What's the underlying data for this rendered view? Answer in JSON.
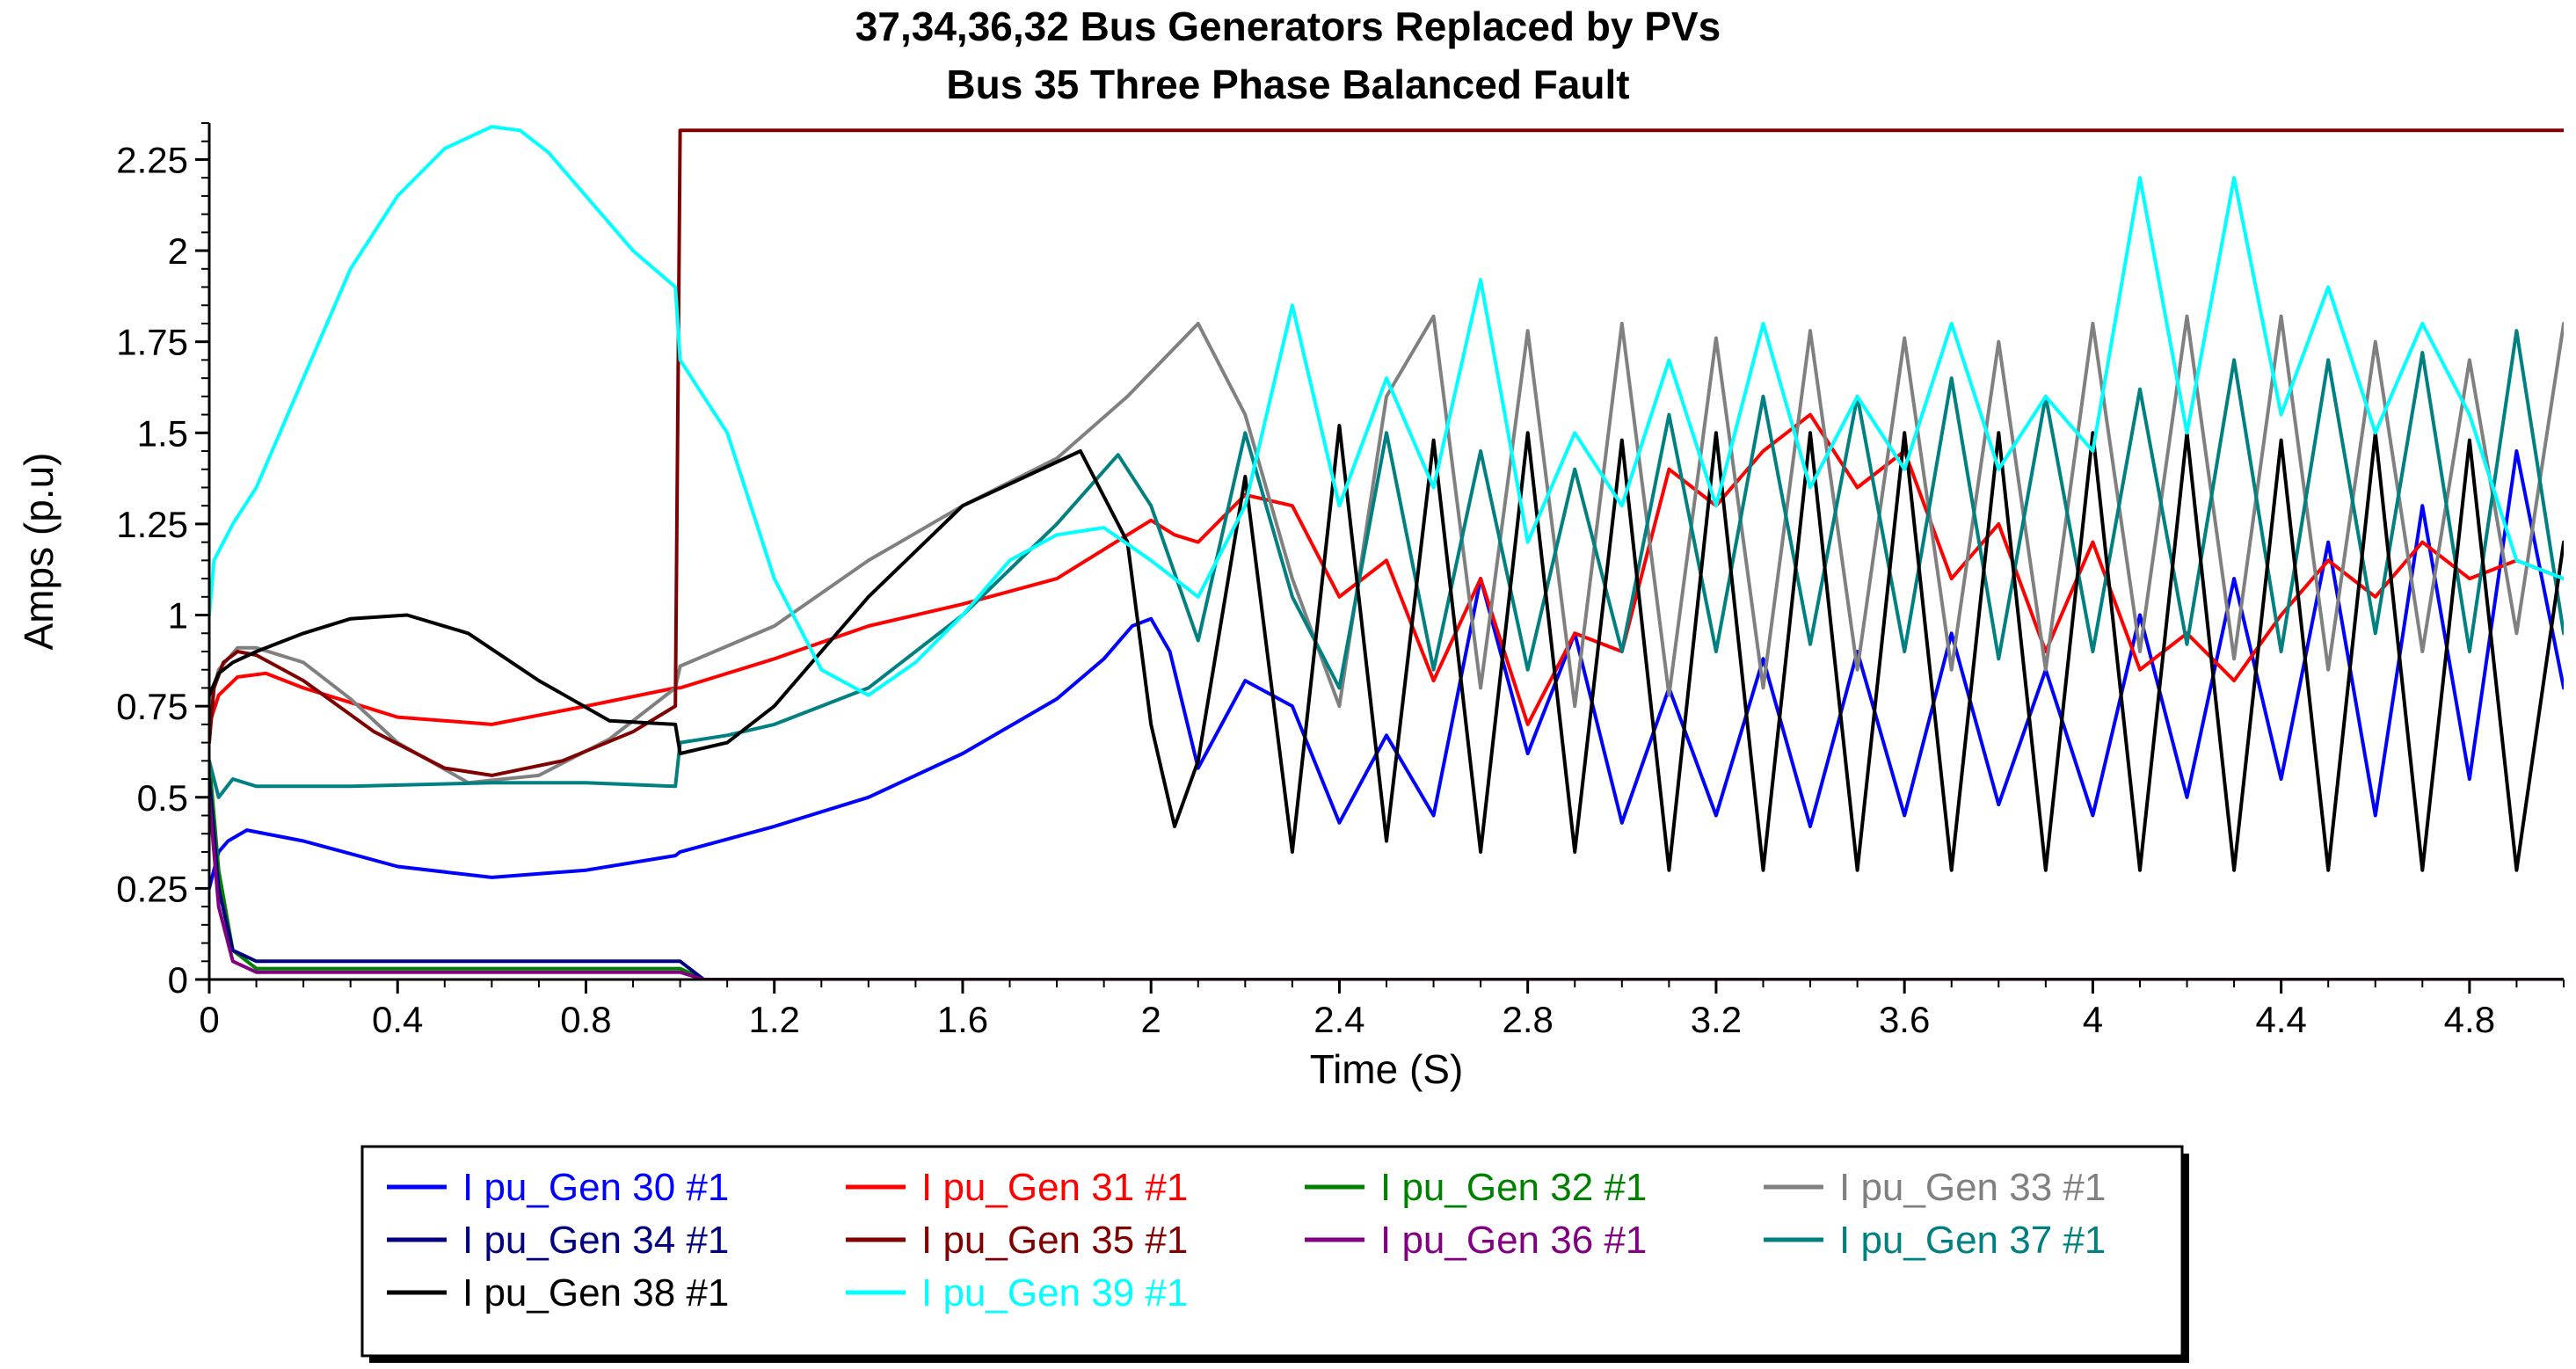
{
  "chart_data": {
    "type": "line",
    "title": "37,34,36,32  Bus Generators Replaced by PVs",
    "subtitle": "Bus 35 Three Phase Balanced Fault",
    "xlabel": "Time (S)",
    "ylabel": "Amps (p.u)",
    "xlim": [
      0,
      5
    ],
    "ylim": [
      0,
      2.35
    ],
    "x_ticks": [
      "0",
      "0.4",
      "0.8",
      "1.2",
      "1.6",
      "2",
      "2.4",
      "2.8",
      "3.2",
      "3.6",
      "4",
      "4.4",
      "4.8"
    ],
    "x_tick_values": [
      0,
      0.4,
      0.8,
      1.2,
      1.6,
      2.0,
      2.4,
      2.8,
      3.2,
      3.6,
      4.0,
      4.4,
      4.8
    ],
    "y_ticks": [
      "0",
      "0.25",
      "0.5",
      "0.75",
      "1",
      "1.25",
      "1.5",
      "1.75",
      "2",
      "2.25"
    ],
    "y_tick_values": [
      0,
      0.25,
      0.5,
      0.75,
      1.0,
      1.25,
      1.5,
      1.75,
      2.0,
      2.25
    ],
    "legend_position": "bottom",
    "fault_time": 1.0,
    "series": [
      {
        "name": "I pu_Gen 30 #1",
        "color": "#0000ff",
        "x": [
          0,
          0.02,
          0.04,
          0.08,
          0.2,
          0.4,
          0.6,
          0.8,
          0.99,
          1.0,
          1.2,
          1.4,
          1.6,
          1.8,
          1.9,
          1.96,
          2.0,
          2.04,
          2.1,
          2.2,
          2.3,
          2.4,
          2.5,
          2.6,
          2.7,
          2.8,
          2.9,
          3.0,
          3.1,
          3.2,
          3.3,
          3.4,
          3.5,
          3.6,
          3.7,
          3.8,
          3.9,
          4.0,
          4.1,
          4.2,
          4.3,
          4.4,
          4.5,
          4.6,
          4.7,
          4.8,
          4.9,
          5.0
        ],
        "y": [
          0.25,
          0.35,
          0.38,
          0.41,
          0.38,
          0.31,
          0.28,
          0.3,
          0.34,
          0.35,
          0.42,
          0.5,
          0.62,
          0.77,
          0.88,
          0.97,
          0.99,
          0.9,
          0.58,
          0.82,
          0.75,
          0.43,
          0.67,
          0.45,
          1.1,
          0.62,
          0.95,
          0.43,
          0.8,
          0.45,
          0.88,
          0.42,
          0.9,
          0.45,
          0.95,
          0.48,
          0.85,
          0.45,
          1.0,
          0.5,
          1.1,
          0.55,
          1.2,
          0.45,
          1.3,
          0.55,
          1.45,
          0.8
        ]
      },
      {
        "name": "I pu_Gen 31 #1",
        "color": "#ff0000",
        "x": [
          0,
          0.02,
          0.06,
          0.12,
          0.2,
          0.4,
          0.6,
          0.8,
          0.99,
          1.0,
          1.2,
          1.4,
          1.6,
          1.8,
          1.9,
          2.0,
          2.05,
          2.1,
          2.2,
          2.3,
          2.4,
          2.5,
          2.6,
          2.7,
          2.8,
          2.9,
          3.0,
          3.1,
          3.2,
          3.3,
          3.4,
          3.5,
          3.6,
          3.7,
          3.8,
          3.9,
          4.0,
          4.1,
          4.2,
          4.3,
          4.4,
          4.5,
          4.6,
          4.7,
          4.8,
          4.9,
          5.0
        ],
        "y": [
          0.7,
          0.78,
          0.83,
          0.84,
          0.8,
          0.72,
          0.7,
          0.75,
          0.8,
          0.8,
          0.88,
          0.97,
          1.03,
          1.1,
          1.18,
          1.26,
          1.22,
          1.2,
          1.33,
          1.3,
          1.05,
          1.15,
          0.82,
          1.1,
          0.7,
          0.95,
          0.9,
          1.4,
          1.3,
          1.45,
          1.55,
          1.35,
          1.45,
          1.1,
          1.25,
          0.9,
          1.2,
          0.85,
          0.95,
          0.82,
          1.0,
          1.15,
          1.05,
          1.2,
          1.1,
          1.15,
          1.1
        ]
      },
      {
        "name": "I pu_Gen 32 #1",
        "color": "#008000",
        "x": [
          0,
          0.02,
          0.05,
          0.1,
          0.99,
          1.0,
          1.05,
          5.0
        ],
        "y": [
          0.6,
          0.3,
          0.08,
          0.03,
          0.03,
          0.03,
          0.0,
          0.0
        ]
      },
      {
        "name": "I pu_Gen 33 #1",
        "color": "#808080",
        "x": [
          0,
          0.02,
          0.06,
          0.1,
          0.2,
          0.3,
          0.4,
          0.55,
          0.7,
          0.85,
          0.99,
          1.0,
          1.2,
          1.4,
          1.6,
          1.8,
          1.95,
          2.1,
          2.2,
          2.3,
          2.4,
          2.5,
          2.6,
          2.7,
          2.8,
          2.9,
          3.0,
          3.1,
          3.2,
          3.3,
          3.4,
          3.5,
          3.6,
          3.7,
          3.8,
          3.9,
          4.0,
          4.1,
          4.2,
          4.3,
          4.4,
          4.5,
          4.6,
          4.7,
          4.8,
          4.9,
          5.0
        ],
        "y": [
          0.75,
          0.85,
          0.91,
          0.91,
          0.87,
          0.77,
          0.65,
          0.54,
          0.56,
          0.66,
          0.8,
          0.86,
          0.97,
          1.15,
          1.3,
          1.43,
          1.6,
          1.8,
          1.55,
          1.1,
          0.75,
          1.6,
          1.82,
          0.8,
          1.78,
          0.75,
          1.8,
          0.78,
          1.76,
          0.8,
          1.78,
          0.85,
          1.76,
          0.85,
          1.75,
          0.85,
          1.8,
          0.9,
          1.82,
          0.88,
          1.82,
          0.85,
          1.75,
          0.9,
          1.7,
          0.95,
          1.8
        ]
      },
      {
        "name": "I pu_Gen 34 #1",
        "color": "#000080",
        "x": [
          0,
          0.02,
          0.05,
          0.1,
          0.99,
          1.0,
          1.05,
          5.0
        ],
        "y": [
          0.55,
          0.25,
          0.08,
          0.05,
          0.05,
          0.05,
          0.0,
          0.0
        ]
      },
      {
        "name": "I pu_Gen 35 #1",
        "color": "#800000",
        "x": [
          0,
          0.01,
          0.03,
          0.06,
          0.1,
          0.2,
          0.35,
          0.5,
          0.6,
          0.75,
          0.9,
          0.99,
          1.0,
          5.0
        ],
        "y": [
          0.65,
          0.8,
          0.87,
          0.9,
          0.89,
          0.82,
          0.68,
          0.58,
          0.56,
          0.6,
          0.68,
          0.75,
          2.33,
          2.33
        ]
      },
      {
        "name": "I pu_Gen 36 #1",
        "color": "#800080",
        "x": [
          0,
          0.02,
          0.05,
          0.1,
          0.99,
          1.0,
          1.05,
          5.0
        ],
        "y": [
          0.5,
          0.2,
          0.05,
          0.02,
          0.02,
          0.02,
          0.0,
          0.0
        ]
      },
      {
        "name": "I pu_Gen 37 #1",
        "color": "#008080",
        "x": [
          0,
          0.02,
          0.05,
          0.1,
          0.3,
          0.6,
          0.8,
          0.99,
          1.0,
          1.1,
          1.2,
          1.4,
          1.6,
          1.8,
          1.93,
          2.0,
          2.1,
          2.2,
          2.3,
          2.4,
          2.5,
          2.6,
          2.7,
          2.8,
          2.9,
          3.0,
          3.1,
          3.2,
          3.3,
          3.4,
          3.5,
          3.6,
          3.7,
          3.8,
          3.9,
          4.0,
          4.1,
          4.2,
          4.3,
          4.4,
          4.5,
          4.6,
          4.7,
          4.8,
          4.9,
          5.0
        ],
        "y": [
          0.6,
          0.5,
          0.55,
          0.53,
          0.53,
          0.54,
          0.54,
          0.53,
          0.65,
          0.67,
          0.7,
          0.8,
          1.0,
          1.25,
          1.44,
          1.3,
          0.93,
          1.5,
          1.05,
          0.8,
          1.5,
          0.85,
          1.45,
          0.85,
          1.4,
          0.9,
          1.55,
          0.9,
          1.6,
          0.92,
          1.6,
          0.9,
          1.65,
          0.88,
          1.6,
          0.9,
          1.62,
          0.92,
          1.7,
          0.9,
          1.7,
          0.95,
          1.72,
          0.9,
          1.78,
          0.95
        ]
      },
      {
        "name": "I pu_Gen 38 #1",
        "color": "#000000",
        "x": [
          0,
          0.02,
          0.05,
          0.1,
          0.2,
          0.3,
          0.42,
          0.55,
          0.7,
          0.85,
          0.99,
          1.0,
          1.1,
          1.2,
          1.4,
          1.6,
          1.85,
          1.95,
          2.0,
          2.05,
          2.1,
          2.2,
          2.3,
          2.4,
          2.5,
          2.6,
          2.7,
          2.8,
          2.9,
          3.0,
          3.1,
          3.2,
          3.3,
          3.4,
          3.5,
          3.6,
          3.7,
          3.8,
          3.9,
          4.0,
          4.1,
          4.2,
          4.3,
          4.4,
          4.5,
          4.6,
          4.7,
          4.8,
          4.9,
          5.0
        ],
        "y": [
          0.78,
          0.84,
          0.87,
          0.9,
          0.95,
          0.99,
          1.0,
          0.95,
          0.82,
          0.71,
          0.7,
          0.62,
          0.65,
          0.75,
          1.05,
          1.3,
          1.45,
          1.2,
          0.7,
          0.42,
          0.6,
          1.38,
          0.35,
          1.52,
          0.38,
          1.48,
          0.35,
          1.5,
          0.35,
          1.48,
          0.3,
          1.5,
          0.3,
          1.5,
          0.3,
          1.5,
          0.3,
          1.5,
          0.3,
          1.5,
          0.3,
          1.5,
          0.3,
          1.48,
          0.3,
          1.5,
          0.3,
          1.48,
          0.3,
          1.2
        ]
      },
      {
        "name": "I pu_Gen 39 #1",
        "color": "#00ffff",
        "x": [
          0,
          0.01,
          0.05,
          0.1,
          0.2,
          0.3,
          0.4,
          0.5,
          0.6,
          0.66,
          0.72,
          0.8,
          0.9,
          0.99,
          1.0,
          1.05,
          1.1,
          1.2,
          1.3,
          1.4,
          1.5,
          1.6,
          1.7,
          1.8,
          1.9,
          2.0,
          2.1,
          2.2,
          2.3,
          2.4,
          2.5,
          2.6,
          2.7,
          2.8,
          2.9,
          3.0,
          3.1,
          3.2,
          3.3,
          3.4,
          3.5,
          3.6,
          3.7,
          3.8,
          3.9,
          4.0,
          4.1,
          4.2,
          4.3,
          4.4,
          4.5,
          4.6,
          4.7,
          4.8,
          4.9,
          5.0
        ],
        "y": [
          1.0,
          1.15,
          1.25,
          1.35,
          1.65,
          1.95,
          2.15,
          2.28,
          2.34,
          2.33,
          2.27,
          2.15,
          2.0,
          1.9,
          1.7,
          1.6,
          1.5,
          1.1,
          0.85,
          0.78,
          0.87,
          1.0,
          1.15,
          1.22,
          1.24,
          1.15,
          1.05,
          1.3,
          1.85,
          1.3,
          1.65,
          1.35,
          1.92,
          1.2,
          1.5,
          1.3,
          1.7,
          1.3,
          1.8,
          1.35,
          1.6,
          1.4,
          1.8,
          1.4,
          1.6,
          1.45,
          2.2,
          1.5,
          2.2,
          1.55,
          1.9,
          1.5,
          1.8,
          1.55,
          1.15,
          1.1
        ]
      }
    ]
  }
}
